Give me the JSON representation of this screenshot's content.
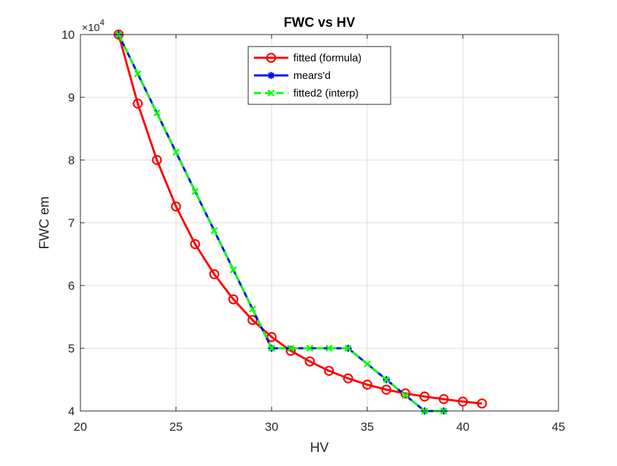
{
  "chart_data": {
    "type": "line",
    "title": "FWC vs HV",
    "xlabel": "HV",
    "ylabel": "FWC em",
    "xlim": [
      20,
      45
    ],
    "ylim": [
      40000,
      100000
    ],
    "xticks": [
      20,
      25,
      30,
      35,
      40,
      45
    ],
    "yticks": [
      4,
      5,
      6,
      7,
      8,
      9,
      10
    ],
    "y_exponent_label": "×10",
    "y_exponent_power": "4",
    "grid": true,
    "legend_position": "top-center",
    "series": [
      {
        "name": "fitted (formula)",
        "color": "#ff0000",
        "line_style": "solid",
        "marker": "circle",
        "x": [
          22,
          23,
          24,
          25,
          26,
          27,
          28,
          29,
          30,
          31,
          32,
          33,
          34,
          35,
          36,
          37,
          38,
          39,
          40,
          41
        ],
        "y": [
          100000,
          89000,
          80000,
          72600,
          66600,
          61800,
          57800,
          54500,
          51800,
          49600,
          47900,
          46400,
          45200,
          44200,
          43400,
          42800,
          42300,
          41900,
          41500,
          41200
        ]
      },
      {
        "name": "mears'd",
        "color": "#0000ff",
        "line_style": "solid",
        "marker": "asterisk",
        "x": [
          22,
          30,
          34,
          36,
          38,
          39
        ],
        "y": [
          100000,
          50000,
          50000,
          45000,
          40000,
          40000
        ]
      },
      {
        "name": "fitted2 (interp)",
        "color": "#00ff00",
        "line_style": "dashed",
        "marker": "x",
        "x": [
          22,
          23,
          24,
          25,
          26,
          27,
          28,
          29,
          30,
          31,
          32,
          33,
          34,
          35,
          36,
          37,
          38,
          39
        ],
        "y": [
          100000,
          93750,
          87500,
          81250,
          75000,
          68750,
          62500,
          56250,
          50000,
          50000,
          50000,
          50000,
          50000,
          47500,
          45000,
          42500,
          40000,
          40000
        ]
      }
    ]
  }
}
